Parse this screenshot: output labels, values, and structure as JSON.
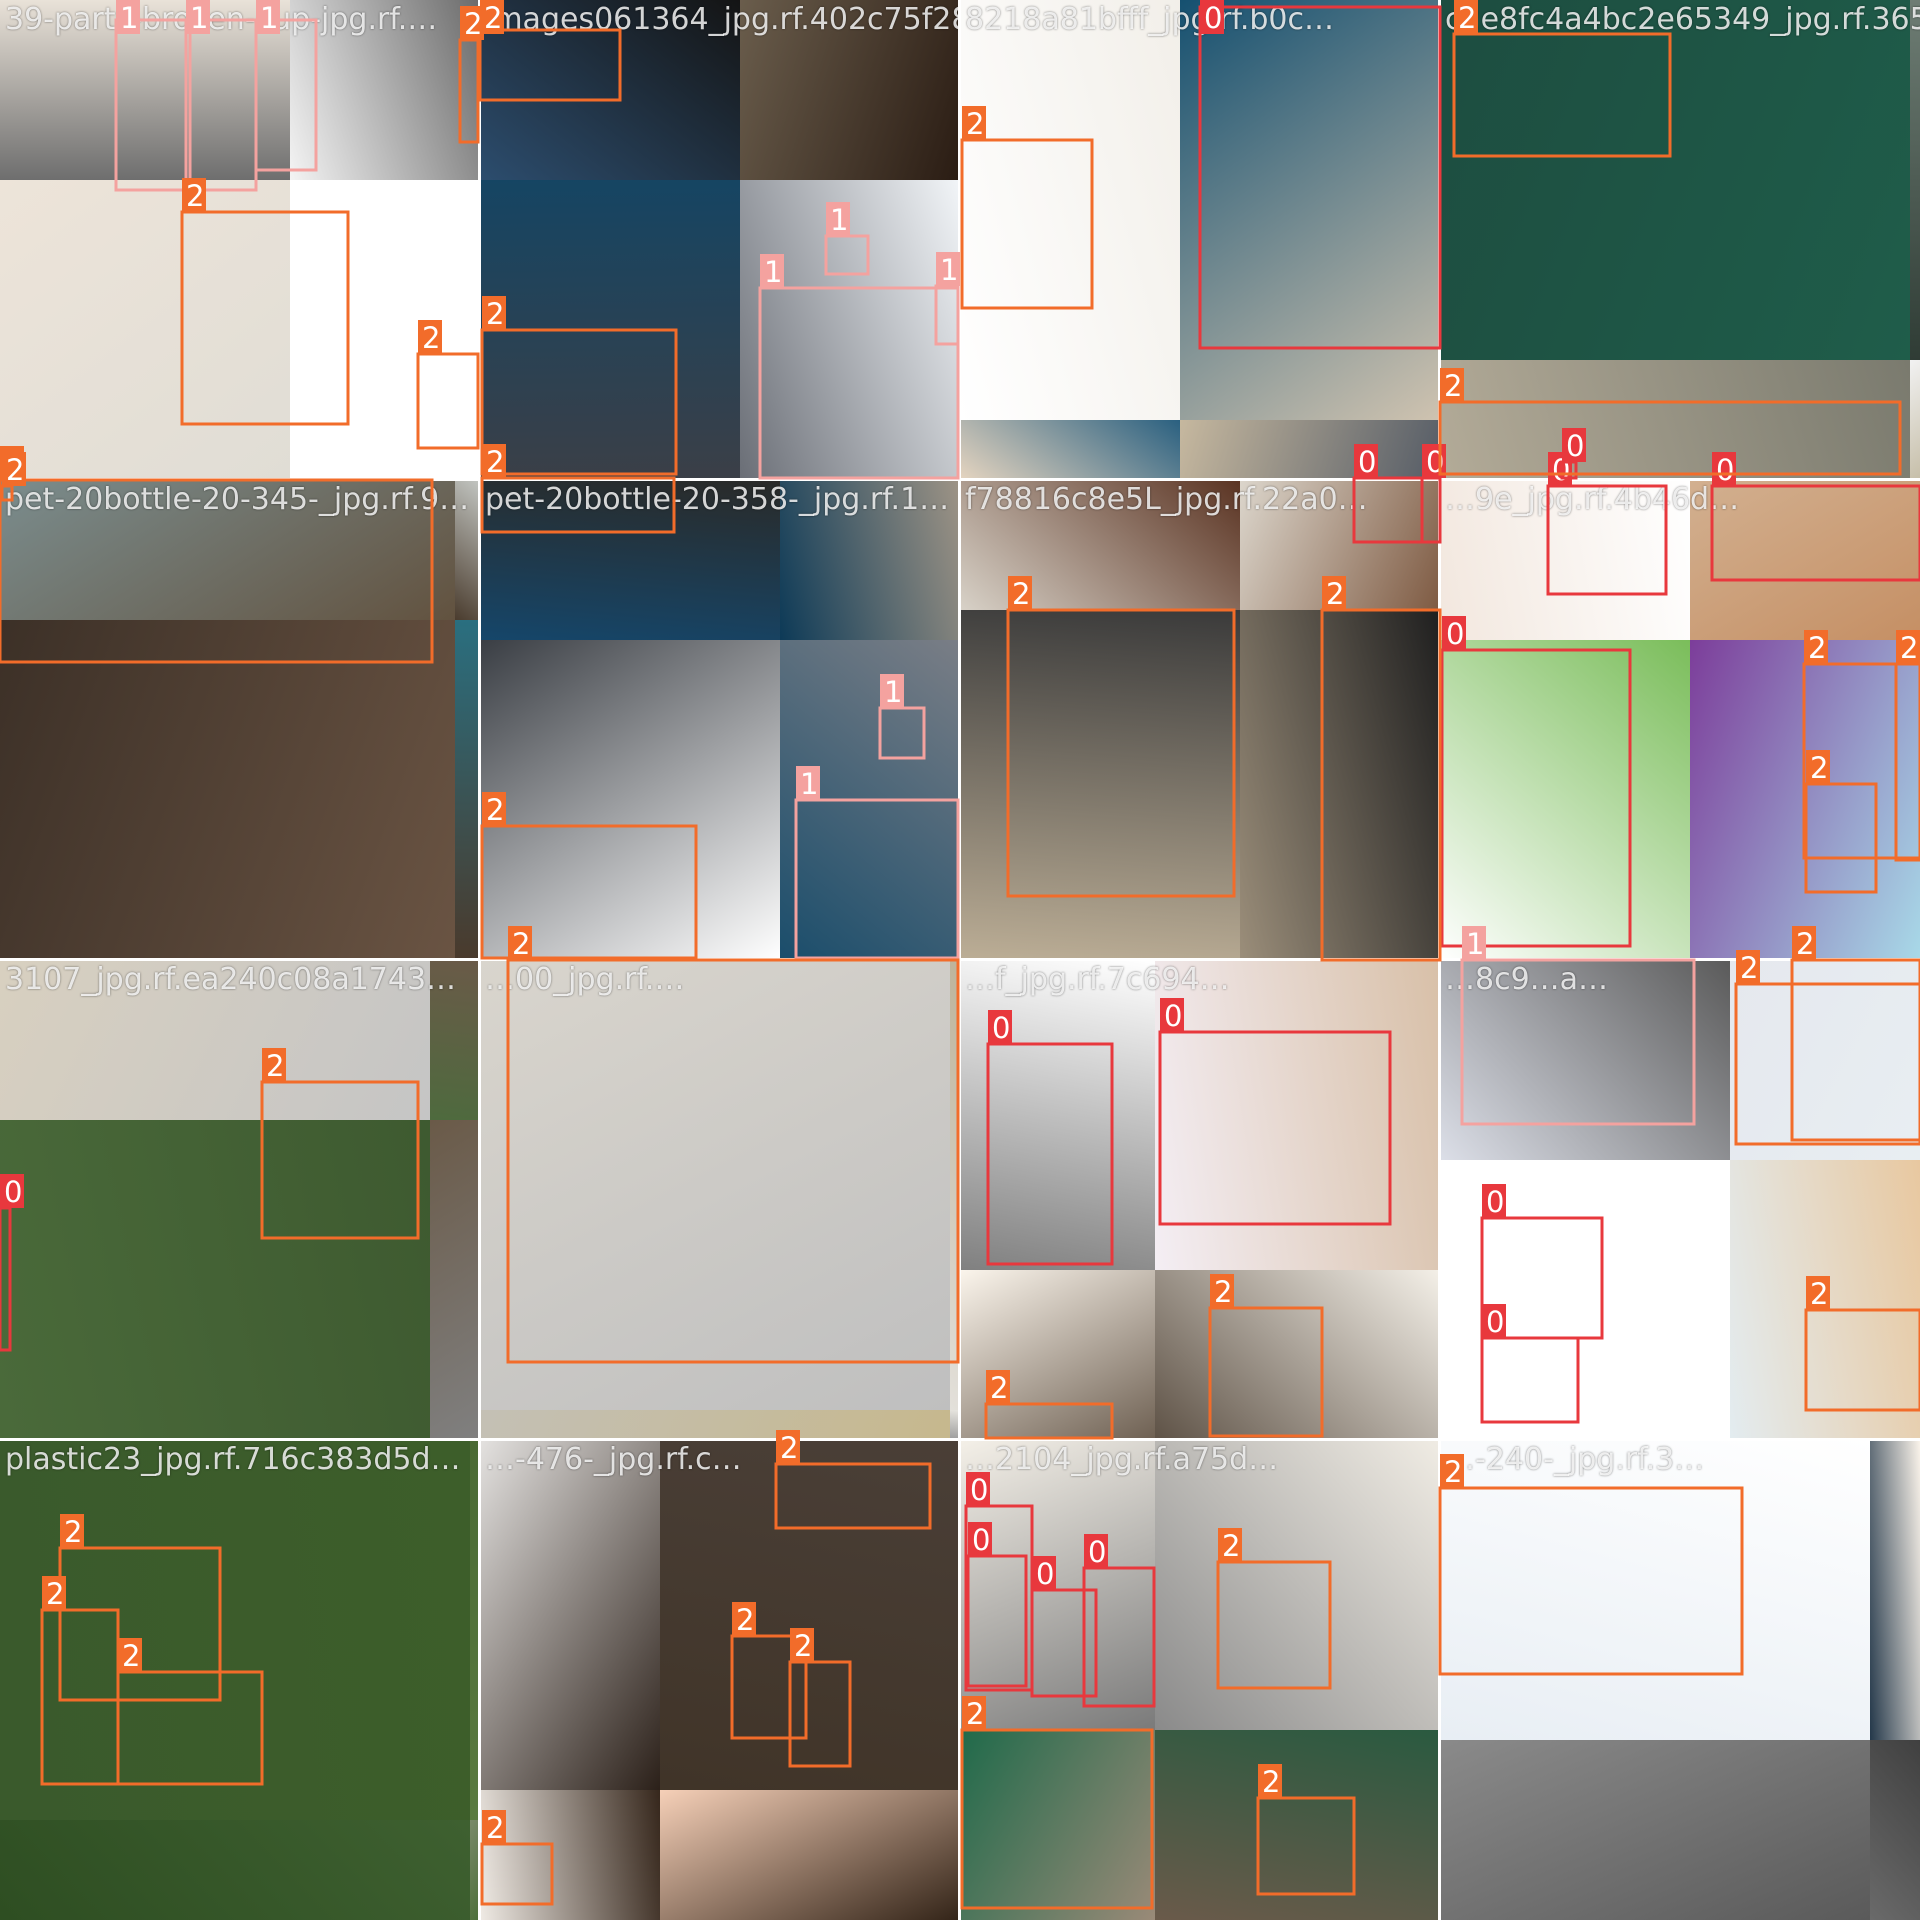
{
  "palette": {
    "0": "#E8383D",
    "1": "#F4A29F",
    "2": "#F26C2A"
  },
  "tiles": [
    {
      "label": "39-parts-broken-cup-jpg.rf.…",
      "top": [
        "#6e6e6e",
        "#f4f4f4",
        "#e9e2d8",
        "#6b6b6b"
      ],
      "bottom": [
        "#ede4d9",
        "#ffffff",
        "#e0ddd5",
        "#ffffff"
      ]
    },
    {
      "label": "images061364_jpg.rf.402c75f28a…",
      "top": [
        "#2c4d6e",
        "#6a5d4c",
        "#141414",
        "#2a1c13"
      ],
      "bottom": [
        "#154563",
        "#f2f5f8",
        "#3b3f47",
        "#6a6e76"
      ]
    },
    {
      "label": "8218a81bfff_jpg.rf.b0c…",
      "top": [
        "#ffffff",
        "#155070",
        "#f2efe9",
        "#cfc3b0"
      ],
      "bottom": [
        "#2a6080",
        "#555c66",
        "#e6d5c0",
        "#c6b89f"
      ]
    },
    {
      "label": "c2e8fc4a4bc2e65349_jpg.rf.3656…",
      "top": [
        "#1d4d40",
        "#6e7d74",
        "#1f5d4a",
        "#2f3c35"
      ],
      "bottom": [
        "#7a7a6e",
        "#c6bea8",
        "#b3ab98",
        "#f2f2f2"
      ]
    },
    {
      "label": "pet-20bottle-20-345-_jpg.rf.9…",
      "top": [
        "#7b8d8e",
        "#c3c6c2",
        "#62523f",
        "#4a3c2e"
      ],
      "bottom": [
        "#6a5443",
        "#4a3a2c",
        "#3c3027",
        "#2a6f80"
      ]
    },
    {
      "label": "pet-20bottle-20-358-_jpg.rf.1…",
      "top": [
        "#2a2a28",
        "#9e9486",
        "#15466a",
        "#0d3a57"
      ],
      "bottom": [
        "#ffffff",
        "#1a4d6b",
        "#3a3e44",
        "#7a7e86"
      ]
    },
    {
      "label": "f78816c8e5L_jpg.rf.22a0…",
      "top": [
        "#5a3322",
        "#7e5a42",
        "#d8d2c8",
        "#dcd6cc"
      ],
      "bottom": [
        "#bcae96",
        "#9b8e7a",
        "#3a3a3a",
        "#1f1f1f"
      ]
    },
    {
      "label": "…9e_jpg.rf.4b46d…",
      "top": [
        "#ffffff",
        "#c58f64",
        "#f2e7de",
        "#d2b090"
      ],
      "bottom": [
        "#ffffff",
        "#7c3d9a",
        "#7abd5a",
        "#a8d9e8"
      ]
    },
    {
      "label": "3107_jpg.rf.ea240c08a1743…",
      "top": [
        "#c5c5c5",
        "#4e6a3e",
        "#d8d0c0",
        "#6a5a48"
      ],
      "bottom": [
        "#4a6a3a",
        "#6a5a48",
        "#3e5a30",
        "#808080"
      ]
    },
    {
      "label": "…00_jpg.rf.…",
      "top": [
        "#bfbfbf",
        "#e3e0da",
        "#d9d5cd",
        "#bdb39a"
      ],
      "bottom": [
        "#c4c0b5",
        "#e7e5df",
        "#c6b88d",
        "#9b9b9b"
      ]
    },
    {
      "label": "…f_jpg.rf.7c694…",
      "top": [
        "#808080",
        "#f4eef4",
        "#ffffff",
        "#d8c0a8"
      ],
      "bottom": [
        "#fbf5ec",
        "#f4f0e8",
        "#6e6052",
        "#5e5246"
      ]
    },
    {
      "label": "…8c9…a…",
      "top": [
        "#dcdfe8",
        "#e5e8ee",
        "#5a5a5a",
        "#e8eef2"
      ],
      "bottom": [
        "#ffffff",
        "#e8c8a0",
        "#ffffff",
        "#e3ecf0"
      ]
    },
    {
      "label": "plastic23_jpg.rf.716c383d5d…",
      "top": [
        "#3a5a2c",
        "#4a6a34",
        "#3d5e2a",
        "#5a7a40"
      ],
      "bottom": [
        "#3e6030",
        "#4c6e38",
        "#2e4e22",
        "#7a8a6a"
      ]
    },
    {
      "label": "…-476-_jpg.rf.c…",
      "top": [
        "#e4e2e0",
        "#4a3f37",
        "#2b2019",
        "#403428"
      ],
      "bottom": [
        "#36271c",
        "#332418",
        "#f0ebe5",
        "#f6d0b8"
      ]
    },
    {
      "label": "…2104_jpg.rf.a75d…",
      "top": [
        "#f4f0e8",
        "#f0ece4",
        "#7a7a7a",
        "#8a8a8a"
      ],
      "bottom": [
        "#9a8a78",
        "#6a5a4a",
        "#1f6a4a",
        "#2a5a40"
      ]
    },
    {
      "label": "…-240-_jpg.rf.3…",
      "top": [
        "#ffffff",
        "#faf3ea",
        "#e8eef4",
        "#24384a"
      ],
      "bottom": [
        "#5a5a5a",
        "#6a6a6a",
        "#8a8a8a",
        "#404040"
      ]
    }
  ],
  "boxes": [
    {
      "cls": "0",
      "label": "0"
    },
    {
      "cls": "0",
      "label": "0"
    },
    {
      "cls": "0",
      "label": "0"
    },
    {
      "cls": "0",
      "label": "0"
    },
    {
      "cls": "0",
      "label": "0"
    },
    {
      "cls": "0",
      "label": "0"
    },
    {
      "cls": "0",
      "label": "0"
    },
    {
      "cls": "0",
      "label": "0"
    },
    {
      "cls": "0",
      "label": "0"
    },
    {
      "cls": "0",
      "label": "0"
    },
    {
      "cls": "0",
      "label": "0"
    },
    {
      "cls": "0",
      "label": "0"
    },
    {
      "cls": "0",
      "label": "0"
    },
    {
      "cls": "0",
      "label": "0"
    },
    {
      "cls": "0",
      "label": "0"
    },
    {
      "cls": "0",
      "label": "0"
    },
    {
      "cls": "1",
      "label": "1"
    },
    {
      "cls": "1",
      "label": "1"
    },
    {
      "cls": "1",
      "label": "1"
    },
    {
      "cls": "1",
      "label": "1"
    },
    {
      "cls": "1",
      "label": "1"
    },
    {
      "cls": "1",
      "label": "1"
    },
    {
      "cls": "1",
      "label": "1"
    },
    {
      "cls": "1",
      "label": "1"
    },
    {
      "cls": "1",
      "label": "1"
    },
    {
      "cls": "2",
      "label": "2"
    },
    {
      "cls": "2",
      "label": "2"
    },
    {
      "cls": "2",
      "label": "2"
    },
    {
      "cls": "2",
      "label": "2"
    },
    {
      "cls": "2",
      "label": "2"
    },
    {
      "cls": "2",
      "label": "2"
    },
    {
      "cls": "2",
      "label": "2"
    },
    {
      "cls": "2",
      "label": "2"
    },
    {
      "cls": "2",
      "label": "2"
    },
    {
      "cls": "2",
      "label": "2"
    },
    {
      "cls": "2",
      "label": "2"
    },
    {
      "cls": "2",
      "label": "2"
    },
    {
      "cls": "2",
      "label": "2"
    },
    {
      "cls": "2",
      "label": "2"
    },
    {
      "cls": "2",
      "label": "2"
    },
    {
      "cls": "2",
      "label": "2"
    },
    {
      "cls": "2",
      "label": "2"
    },
    {
      "cls": "2",
      "label": "2"
    },
    {
      "cls": "2",
      "label": "2"
    },
    {
      "cls": "2",
      "label": "2"
    },
    {
      "cls": "2",
      "label": "2"
    },
    {
      "cls": "2",
      "label": "2"
    },
    {
      "cls": "2",
      "label": "2"
    },
    {
      "cls": "2",
      "label": "2"
    },
    {
      "cls": "2",
      "label": "2"
    },
    {
      "cls": "2",
      "label": "2"
    },
    {
      "cls": "2",
      "label": "2"
    },
    {
      "cls": "2",
      "label": "2"
    },
    {
      "cls": "2",
      "label": "2"
    },
    {
      "cls": "2",
      "label": "2"
    },
    {
      "cls": "2",
      "label": "2"
    },
    {
      "cls": "2",
      "label": "2"
    },
    {
      "cls": "2",
      "label": "2"
    },
    {
      "cls": "2",
      "label": "2"
    },
    {
      "cls": "2",
      "label": "2"
    },
    {
      "cls": "2",
      "label": "2"
    }
  ]
}
